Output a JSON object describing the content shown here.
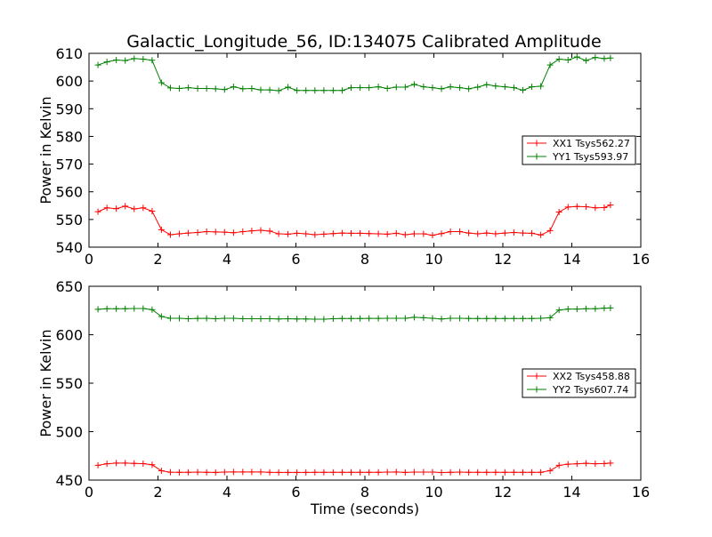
{
  "title": "Galactic_Longitude_56, ID:134075 Calibrated Amplitude",
  "chart_data": [
    {
      "type": "line",
      "xlabel": "",
      "ylabel": "Power in Kelvin",
      "xlim": [
        0,
        16
      ],
      "ylim": [
        540,
        610
      ],
      "xticks": [
        "0",
        "2",
        "4",
        "6",
        "8",
        "10",
        "12",
        "14",
        "16"
      ],
      "yticks": [
        "540",
        "550",
        "560",
        "570",
        "580",
        "590",
        "600",
        "610"
      ],
      "grid": false,
      "legend_position": "center-right",
      "x": [
        0.26,
        0.52,
        0.79,
        1.05,
        1.31,
        1.57,
        1.83,
        2.1,
        2.36,
        2.62,
        2.88,
        3.15,
        3.41,
        3.67,
        3.93,
        4.19,
        4.46,
        4.72,
        4.98,
        5.24,
        5.5,
        5.77,
        6.03,
        6.29,
        6.55,
        6.81,
        7.08,
        7.34,
        7.6,
        7.86,
        8.12,
        8.39,
        8.65,
        8.91,
        9.17,
        9.43,
        9.7,
        9.96,
        10.22,
        10.48,
        10.75,
        11.01,
        11.27,
        11.53,
        11.79,
        12.06,
        12.32,
        12.58,
        12.84,
        13.1,
        13.37,
        13.63,
        13.89,
        14.15,
        14.41,
        14.68,
        14.94,
        15.12
      ],
      "series": [
        {
          "name": "XX1 Tsys562.27",
          "color": "#ff0000",
          "values": [
            552.8,
            554.2,
            553.9,
            554.8,
            553.8,
            554.2,
            553.0,
            546.3,
            544.5,
            544.8,
            545.1,
            545.3,
            545.6,
            545.5,
            545.4,
            545.2,
            545.6,
            545.9,
            546.1,
            545.8,
            544.8,
            544.7,
            545.0,
            544.8,
            544.5,
            544.7,
            544.9,
            545.1,
            545.0,
            545.0,
            544.9,
            544.8,
            544.7,
            545.0,
            544.5,
            544.8,
            544.8,
            544.3,
            544.9,
            545.6,
            545.6,
            545.1,
            544.8,
            545.1,
            544.8,
            545.1,
            545.3,
            545.1,
            545.0,
            544.4,
            546.0,
            552.7,
            554.5,
            554.7,
            554.6,
            554.2,
            554.3,
            555.2
          ]
        },
        {
          "name": "YY1 Tsys593.97",
          "color": "#008000",
          "values": [
            605.8,
            606.9,
            607.6,
            607.4,
            608.1,
            607.9,
            607.5,
            599.4,
            597.5,
            597.3,
            597.6,
            597.3,
            597.3,
            597.2,
            596.9,
            597.9,
            597.2,
            597.3,
            596.8,
            596.8,
            596.5,
            597.8,
            596.6,
            596.6,
            596.6,
            596.6,
            596.6,
            596.6,
            597.6,
            597.6,
            597.6,
            597.9,
            597.3,
            597.8,
            597.8,
            598.8,
            597.9,
            597.6,
            597.2,
            597.9,
            597.6,
            597.2,
            597.8,
            598.7,
            598.2,
            597.9,
            597.6,
            596.7,
            597.9,
            598.1,
            605.8,
            607.9,
            607.6,
            608.7,
            607.4,
            608.5,
            608.1,
            608.3
          ]
        }
      ]
    },
    {
      "type": "line",
      "xlabel": "Time (seconds)",
      "ylabel": "Power in Kelvin",
      "xlim": [
        0,
        16
      ],
      "ylim": [
        450,
        650
      ],
      "xticks": [
        "0",
        "2",
        "4",
        "6",
        "8",
        "10",
        "12",
        "14",
        "16"
      ],
      "yticks": [
        "450",
        "500",
        "550",
        "600",
        "650"
      ],
      "grid": false,
      "legend_position": "center-right",
      "x": [
        0.26,
        0.52,
        0.79,
        1.05,
        1.31,
        1.57,
        1.83,
        2.1,
        2.36,
        2.62,
        2.88,
        3.15,
        3.41,
        3.67,
        3.93,
        4.19,
        4.46,
        4.72,
        4.98,
        5.24,
        5.5,
        5.77,
        6.03,
        6.29,
        6.55,
        6.81,
        7.08,
        7.34,
        7.6,
        7.86,
        8.12,
        8.39,
        8.65,
        8.91,
        9.17,
        9.43,
        9.7,
        9.96,
        10.22,
        10.48,
        10.75,
        11.01,
        11.27,
        11.53,
        11.79,
        12.06,
        12.32,
        12.58,
        12.84,
        13.1,
        13.37,
        13.63,
        13.89,
        14.15,
        14.41,
        14.68,
        14.94,
        15.12
      ],
      "series": [
        {
          "name": "XX2 Tsys458.88",
          "color": "#ff0000",
          "values": [
            465.2,
            466.9,
            467.5,
            467.5,
            467.2,
            467.0,
            465.8,
            459.6,
            458.1,
            458.0,
            458.0,
            458.2,
            458.0,
            457.9,
            458.3,
            458.4,
            458.4,
            458.4,
            458.4,
            458.0,
            457.9,
            457.9,
            457.9,
            457.9,
            458.0,
            458.0,
            458.0,
            458.0,
            458.0,
            458.0,
            458.0,
            458.0,
            458.2,
            458.4,
            457.9,
            458.2,
            458.2,
            458.2,
            457.8,
            458.0,
            458.2,
            458.0,
            458.0,
            458.0,
            458.0,
            458.0,
            458.0,
            458.0,
            458.0,
            458.0,
            459.8,
            465.2,
            466.4,
            466.9,
            467.3,
            466.9,
            467.1,
            467.6
          ]
        },
        {
          "name": "YY2 Tsys607.74",
          "color": "#008000",
          "values": [
            626.3,
            626.8,
            626.8,
            626.8,
            627.1,
            627.1,
            625.9,
            618.8,
            617.0,
            617.0,
            616.5,
            616.9,
            617.0,
            616.5,
            617.0,
            617.0,
            616.5,
            616.5,
            616.5,
            616.5,
            616.3,
            616.5,
            616.3,
            616.3,
            616.1,
            616.1,
            616.5,
            616.8,
            616.8,
            616.8,
            616.9,
            616.9,
            617.0,
            617.0,
            617.0,
            618.0,
            617.5,
            617.0,
            616.3,
            617.0,
            617.0,
            616.8,
            616.8,
            616.8,
            616.8,
            616.8,
            616.8,
            616.8,
            616.8,
            617.0,
            617.5,
            625.5,
            626.5,
            626.5,
            626.8,
            626.8,
            627.4,
            627.6
          ]
        }
      ]
    }
  ]
}
